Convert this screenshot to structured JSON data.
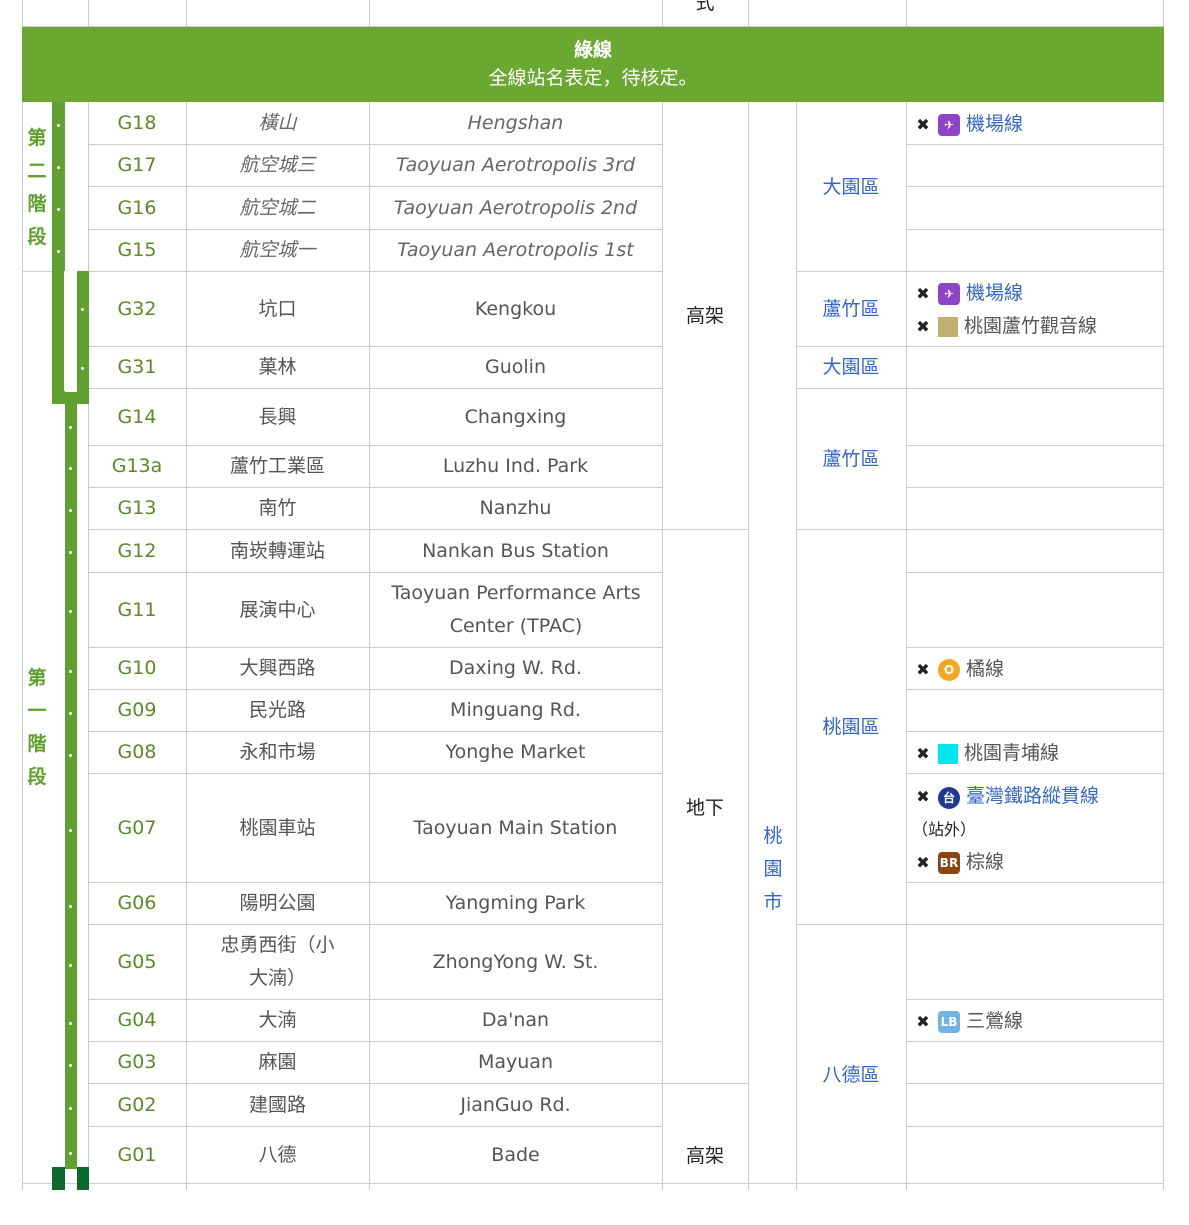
{
  "top_fragment": "式",
  "banner": {
    "title": "綠線",
    "subtitle": "全線站名表定，待核定。",
    "color": "#6aa832"
  },
  "phases": {
    "phase2": "第二階段",
    "phase1": "第一階段"
  },
  "structure": {
    "elevated_top": "高架",
    "underground": "地下",
    "elevated_bottom": "高架"
  },
  "city": "桃園市",
  "districts": {
    "dayuan_top": "大園區",
    "luzhu_g32": "蘆竹區",
    "dayuan_g31": "大園區",
    "luzhu_mid": "蘆竹區",
    "taoyuan": "桃園區",
    "bade": "八德區"
  },
  "stations": [
    {
      "code": "G18",
      "zh": "橫山",
      "en": "Hengshan"
    },
    {
      "code": "G17",
      "zh": "航空城三",
      "en": "Taoyuan Aerotropolis 3rd"
    },
    {
      "code": "G16",
      "zh": "航空城二",
      "en": "Taoyuan Aerotropolis 2nd"
    },
    {
      "code": "G15",
      "zh": "航空城一",
      "en": "Taoyuan Aerotropolis 1st"
    },
    {
      "code": "G32",
      "zh": "坑口",
      "en": "Kengkou"
    },
    {
      "code": "G31",
      "zh": "菓林",
      "en": "Guolin"
    },
    {
      "code": "G14",
      "zh": "長興",
      "en": "Changxing"
    },
    {
      "code": "G13a",
      "zh": "蘆竹工業區",
      "en": "Luzhu Ind. Park"
    },
    {
      "code": "G13",
      "zh": "南竹",
      "en": "Nanzhu"
    },
    {
      "code": "G12",
      "zh": "南崁轉運站",
      "en": "Nankan Bus Station"
    },
    {
      "code": "G11",
      "zh": "展演中心",
      "en": "Taoyuan Performance Arts Center (TPAC)"
    },
    {
      "code": "G10",
      "zh": "大興西路",
      "en": "Daxing W. Rd."
    },
    {
      "code": "G09",
      "zh": "民光路",
      "en": "Minguang Rd."
    },
    {
      "code": "G08",
      "zh": "永和市場",
      "en": "Yonghe Market"
    },
    {
      "code": "G07",
      "zh": "桃園車站",
      "en": "Taoyuan Main Station"
    },
    {
      "code": "G06",
      "zh": "陽明公園",
      "en": "Yangming Park"
    },
    {
      "code": "G05",
      "zh": "忠勇西街（小大湳）",
      "en": "ZhongYong W. St."
    },
    {
      "code": "G04",
      "zh": "大湳",
      "en": "Da'nan"
    },
    {
      "code": "G03",
      "zh": "麻園",
      "en": "Mayuan"
    },
    {
      "code": "G02",
      "zh": "建國路",
      "en": "JianGuo Rd."
    },
    {
      "code": "G01",
      "zh": "八德",
      "en": "Bade"
    }
  ],
  "transfers": {
    "airport_g18": {
      "icon": "cross-icon",
      "badge": "airport-icon",
      "label": "機場線",
      "color": "#8e44c6"
    },
    "airport_g32": {
      "icon": "cross-icon",
      "badge": "airport-icon",
      "label": "機場線",
      "color": "#8e44c6"
    },
    "luzhu_guanyin": {
      "icon": "cross-icon",
      "label": "桃園蘆竹觀音線",
      "color": "#c0b070"
    },
    "orange": {
      "icon": "cross-icon",
      "badge_text": "O",
      "label": "橘線",
      "color": "#f5a623"
    },
    "qingpu": {
      "icon": "cross-icon",
      "label": "桃園青埔線",
      "color": "#00e5ee"
    },
    "tra": {
      "icon": "cross-icon",
      "badge": "tra-logo-icon",
      "label": "臺灣鐵路縱貫線",
      "suffix": "（站外）",
      "color": "#1f3a93"
    },
    "brown": {
      "icon": "cross-icon",
      "badge_text": "BR",
      "label": "棕線",
      "color": "#8b4513"
    },
    "sanying": {
      "icon": "cross-icon",
      "badge_text": "LB",
      "label": "三鶯線",
      "color": "#6fb3e8"
    }
  }
}
